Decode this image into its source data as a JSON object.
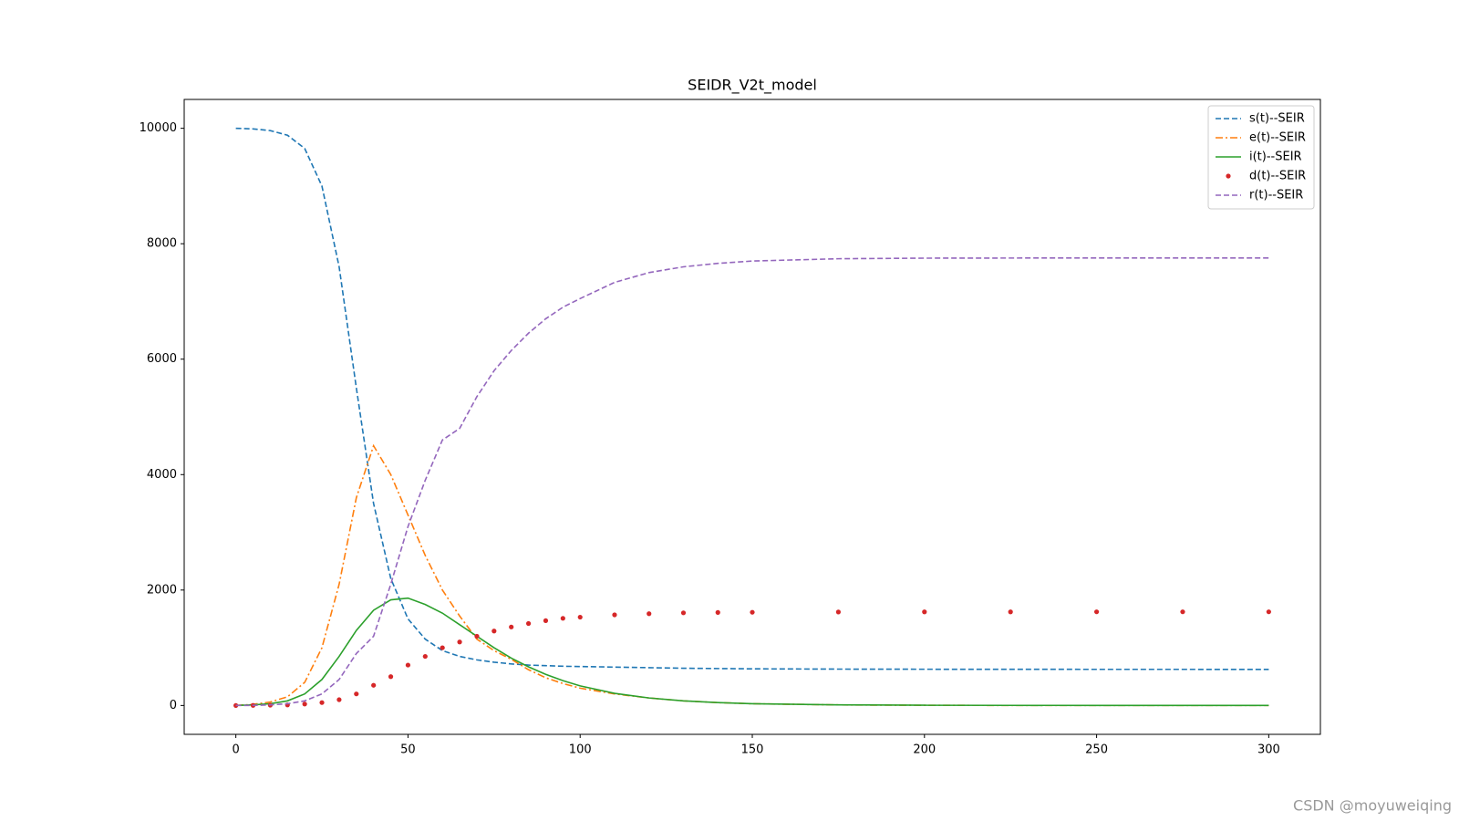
{
  "chart_data": {
    "type": "line",
    "title": "SEIDR_V2t_model",
    "x": [
      0,
      5,
      10,
      15,
      20,
      25,
      30,
      35,
      40,
      45,
      50,
      55,
      60,
      65,
      70,
      75,
      80,
      85,
      90,
      95,
      100,
      110,
      120,
      130,
      140,
      150,
      175,
      200,
      225,
      250,
      275,
      300
    ],
    "series": [
      {
        "name": "s(t)--SEIR",
        "color": "#1f77b4",
        "style": "dashed",
        "values": [
          10000,
          9990,
          9960,
          9880,
          9650,
          9000,
          7600,
          5500,
          3500,
          2200,
          1500,
          1150,
          950,
          850,
          790,
          750,
          720,
          700,
          690,
          680,
          675,
          665,
          655,
          645,
          640,
          635,
          630,
          628,
          627,
          626,
          626,
          625
        ]
      },
      {
        "name": "e(t)--SEIR",
        "color": "#ff7f0e",
        "style": "dashdot",
        "values": [
          0,
          20,
          60,
          150,
          400,
          1000,
          2100,
          3600,
          4500,
          4000,
          3300,
          2600,
          2000,
          1550,
          1150,
          950,
          800,
          620,
          480,
          380,
          300,
          200,
          130,
          80,
          50,
          30,
          10,
          3,
          1,
          0,
          0,
          0
        ]
      },
      {
        "name": "i(t)--SEIR",
        "color": "#2ca02c",
        "style": "solid",
        "values": [
          0,
          10,
          30,
          80,
          200,
          450,
          850,
          1300,
          1650,
          1830,
          1860,
          1750,
          1600,
          1400,
          1200,
          1000,
          820,
          670,
          540,
          430,
          340,
          210,
          130,
          80,
          50,
          30,
          10,
          4,
          2,
          1,
          0,
          0
        ]
      },
      {
        "name": "d(t)--SEIR",
        "color": "#d62728",
        "style": "dots",
        "values": [
          0,
          2,
          5,
          10,
          25,
          50,
          100,
          200,
          350,
          500,
          700,
          850,
          1000,
          1100,
          1200,
          1290,
          1360,
          1420,
          1470,
          1510,
          1530,
          1570,
          1590,
          1605,
          1612,
          1615,
          1620,
          1622,
          1622,
          1623,
          1623,
          1623
        ]
      },
      {
        "name": "r(t)--SEIR",
        "color": "#9467bd",
        "style": "dashed",
        "values": [
          0,
          2,
          10,
          30,
          80,
          200,
          450,
          900,
          1200,
          2100,
          3100,
          3900,
          4600,
          4800,
          5350,
          5800,
          6150,
          6450,
          6700,
          6900,
          7050,
          7330,
          7500,
          7600,
          7660,
          7700,
          7740,
          7750,
          7752,
          7753,
          7753,
          7753
        ]
      }
    ],
    "xlim": [
      -15,
      315
    ],
    "ylim": [
      -500,
      10500
    ],
    "xticks": [
      0,
      50,
      100,
      150,
      200,
      250,
      300
    ],
    "yticks": [
      0,
      2000,
      4000,
      6000,
      8000,
      10000
    ],
    "legend": "upper right",
    "watermark": "CSDN @moyuweiqing"
  }
}
